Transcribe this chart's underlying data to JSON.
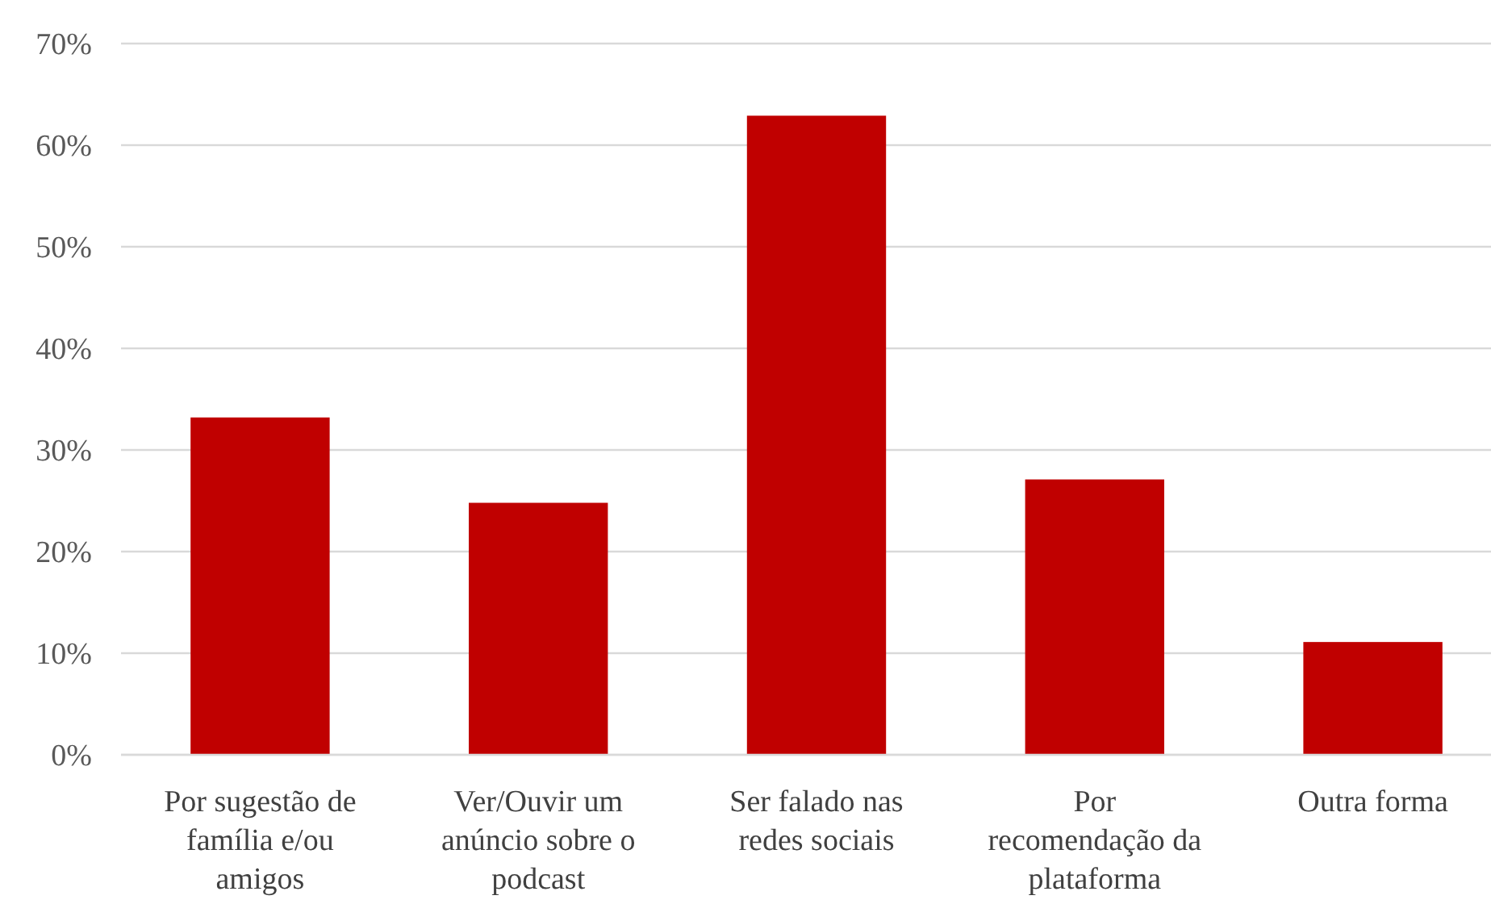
{
  "chart_data": {
    "type": "bar",
    "categories": [
      "Por sugestão de família e/ou amigos",
      "Ver/Ouvir um anúncio sobre o podcast",
      "Ser falado nas redes sociais",
      "Por recomendação da plataforma",
      "Outra forma"
    ],
    "values": [
      33.2,
      24.8,
      62.9,
      27.1,
      11.1
    ],
    "color": "#c00000",
    "ylim": [
      0,
      70
    ],
    "yticks": [
      {
        "value": 0,
        "label": "0%"
      },
      {
        "value": 10,
        "label": "10%"
      },
      {
        "value": 20,
        "label": "20%"
      },
      {
        "value": 30,
        "label": "30%"
      },
      {
        "value": 40,
        "label": "40%"
      },
      {
        "value": 50,
        "label": "50%"
      },
      {
        "value": 60,
        "label": "60%"
      },
      {
        "value": 70,
        "label": "70%"
      }
    ],
    "grid": "y"
  }
}
